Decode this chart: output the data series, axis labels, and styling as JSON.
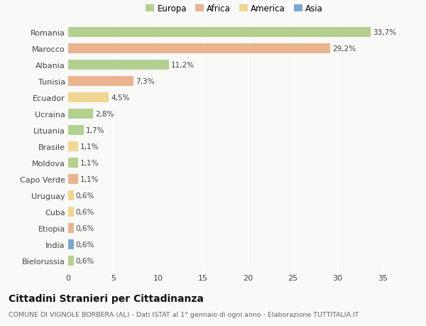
{
  "categories": [
    "Romania",
    "Marocco",
    "Albania",
    "Tunisia",
    "Ecuador",
    "Ucraina",
    "Lituania",
    "Brasile",
    "Moldova",
    "Capo Verde",
    "Uruguay",
    "Cuba",
    "Etiopia",
    "India",
    "Bielorussia"
  ],
  "values": [
    33.7,
    29.2,
    11.2,
    7.3,
    4.5,
    2.8,
    1.7,
    1.1,
    1.1,
    1.1,
    0.6,
    0.6,
    0.6,
    0.6,
    0.6
  ],
  "labels": [
    "33,7%",
    "29,2%",
    "11,2%",
    "7,3%",
    "4,5%",
    "2,8%",
    "1,7%",
    "1,1%",
    "1,1%",
    "1,1%",
    "0,6%",
    "0,6%",
    "0,6%",
    "0,6%",
    "0,6%"
  ],
  "continents": [
    "Europa",
    "Africa",
    "Europa",
    "Africa",
    "America",
    "Europa",
    "Europa",
    "America",
    "Europa",
    "Africa",
    "America",
    "America",
    "Africa",
    "Asia",
    "Europa"
  ],
  "colors": {
    "Europa": "#a8c97f",
    "Africa": "#e8a87c",
    "America": "#f0d080",
    "Asia": "#6699cc"
  },
  "title": "Cittadini Stranieri per Cittadinanza",
  "subtitle": "COMUNE DI VIGNOLE BORBERA (AL) - Dati ISTAT al 1° gennaio di ogni anno - Elaborazione TUTTITALIA.IT",
  "xlim": [
    0,
    37
  ],
  "xticks": [
    0,
    5,
    10,
    15,
    20,
    25,
    30,
    35
  ],
  "background_color": "#f9f9f7",
  "bar_height": 0.65,
  "bar_alpha": 0.85,
  "label_fontsize": 7.5,
  "ytick_fontsize": 8,
  "xtick_fontsize": 8,
  "legend_fontsize": 8.5,
  "title_fontsize": 10,
  "subtitle_fontsize": 6.8
}
